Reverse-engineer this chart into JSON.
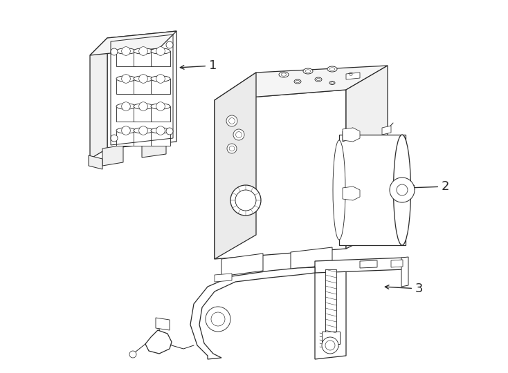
{
  "background_color": "#ffffff",
  "line_color": "#2a2a2a",
  "lw": 0.9,
  "fill_color": "#ffffff",
  "figsize": [
    7.34,
    5.4
  ],
  "dpi": 100,
  "labels": [
    "1",
    "2",
    "3"
  ],
  "label_fontsize": 13
}
